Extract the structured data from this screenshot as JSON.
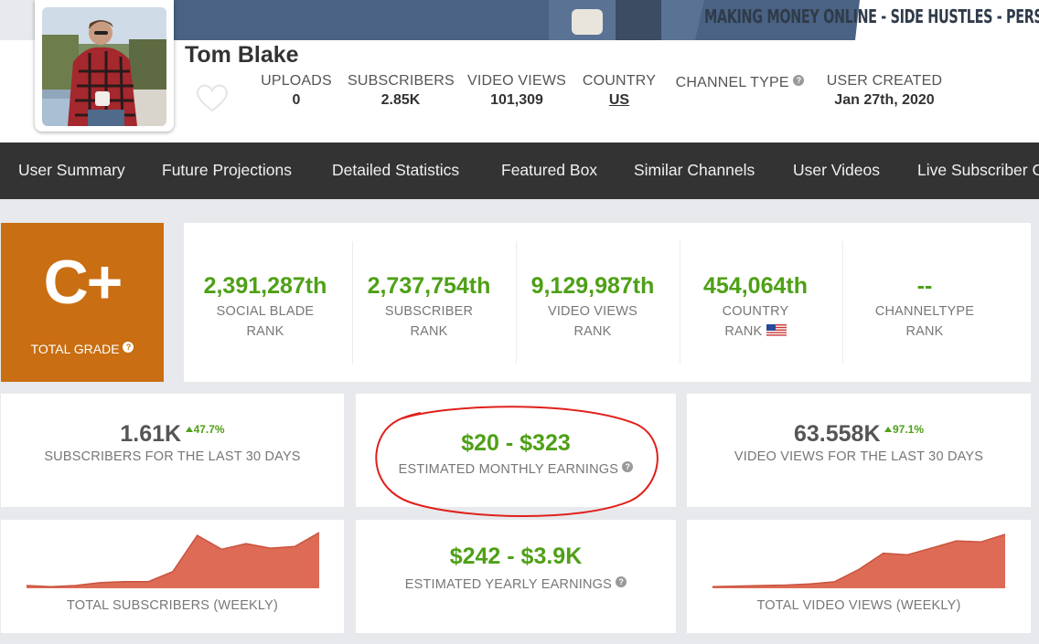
{
  "header": {
    "banner_text": "MAKING MONEY ONLINE - SIDE HUSTLES - PERSONAL",
    "channel_name": "Tom Blake",
    "stats": [
      {
        "label": "UPLOADS",
        "value": "0"
      },
      {
        "label": "SUBSCRIBERS",
        "value": "2.85K"
      },
      {
        "label": "VIDEO VIEWS",
        "value": "101,309"
      },
      {
        "label": "COUNTRY",
        "value": "US"
      },
      {
        "label": "CHANNEL TYPE",
        "value": ""
      },
      {
        "label": "USER CREATED",
        "value": "Jan 27th, 2020"
      }
    ]
  },
  "nav": {
    "items": [
      "User Summary",
      "Future Projections",
      "Detailed Statistics",
      "Featured Box",
      "Similar Channels",
      "User Videos",
      "Live Subscriber Count"
    ]
  },
  "grade": {
    "value": "C+",
    "label": "TOTAL GRADE"
  },
  "ranks": [
    {
      "value": "2,391,287th",
      "line1": "SOCIAL BLADE",
      "line2": "RANK"
    },
    {
      "value": "2,737,754th",
      "line1": "SUBSCRIBER",
      "line2": "RANK"
    },
    {
      "value": "9,129,987th",
      "line1": "VIDEO VIEWS",
      "line2": "RANK"
    },
    {
      "value": "454,064th",
      "line1": "COUNTRY",
      "line2": "RANK"
    },
    {
      "value": "--",
      "line1": "CHANNELTYPE",
      "line2": "RANK"
    }
  ],
  "monthly": {
    "subs": {
      "value": "1.61K",
      "delta": "47.7%",
      "label": "SUBSCRIBERS FOR THE LAST 30 DAYS"
    },
    "earnings": {
      "value": "$20 - $323",
      "label": "ESTIMATED MONTHLY EARNINGS"
    },
    "views": {
      "value": "63.558K",
      "delta": "97.1%",
      "label": "VIDEO VIEWS FOR THE LAST 30 DAYS"
    }
  },
  "yearly": {
    "value": "$242 - $3.9K",
    "label": "ESTIMATED YEARLY EARNINGS"
  },
  "charts": {
    "subs_label": "TOTAL SUBSCRIBERS (WEEKLY)",
    "views_label": "TOTAL VIDEO VIEWS (WEEKLY)"
  },
  "colors": {
    "accent_green": "#4ea016",
    "grade_orange": "#c96e12",
    "chart_fill": "#dd6b55",
    "annotation_red": "#e0201a",
    "nav_bg": "#333333"
  },
  "chart_data": [
    {
      "type": "area",
      "title": "TOTAL SUBSCRIBERS (WEEKLY)",
      "values": [
        0.05,
        0.03,
        0.05,
        0.1,
        0.12,
        0.12,
        0.3,
        0.95,
        0.7,
        0.8,
        0.72,
        0.75,
        1.0
      ],
      "ylim": [
        0,
        1
      ]
    },
    {
      "type": "area",
      "title": "TOTAL VIDEO VIEWS (WEEKLY)",
      "values": [
        0.03,
        0.04,
        0.05,
        0.06,
        0.08,
        0.12,
        0.35,
        0.65,
        0.62,
        0.75,
        0.88,
        0.86,
        1.0
      ],
      "ylim": [
        0,
        1
      ]
    }
  ]
}
